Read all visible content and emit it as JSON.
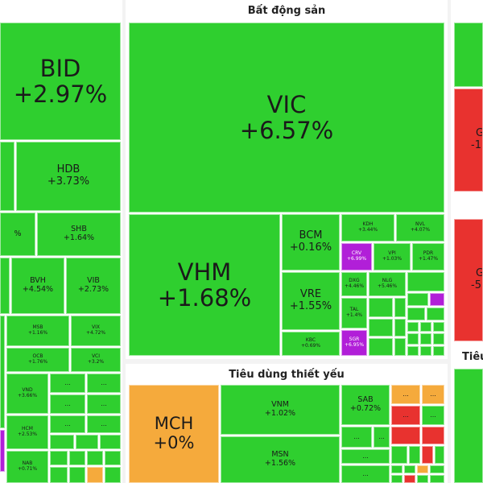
{
  "colors": {
    "up": "#2fcf2f",
    "down": "#e8322f",
    "ceiling": "#b11fd8",
    "reference": "#f5aa3c"
  },
  "sectors": {
    "real_estate": "Bất động sản",
    "consumer_staples": "Tiêu dùng thiết yếu",
    "right_partial": "Tiêu"
  },
  "tiles": {
    "bid": {
      "ticker": "BID",
      "change": "+2.97%"
    },
    "hdb": {
      "ticker": "HDB",
      "change": "+3.73%"
    },
    "shb": {
      "ticker": "SHB",
      "change": "+1.64%"
    },
    "left_partial": {
      "change": "%"
    },
    "bvh": {
      "ticker": "BVH",
      "change": "+4.54%"
    },
    "vib": {
      "ticker": "VIB",
      "change": "+2.73%"
    },
    "msb": {
      "ticker": "MSB",
      "change": "+1.16%"
    },
    "vix": {
      "ticker": "VIX",
      "change": "+4.72%"
    },
    "ocb": {
      "ticker": "OCB",
      "change": "+1.76%"
    },
    "vci": {
      "ticker": "VCI",
      "change": "+3.2%"
    },
    "vnd": {
      "ticker": "VND",
      "change": "+3.66%"
    },
    "hcm": {
      "ticker": "HCM",
      "change": "+2.53%"
    },
    "nab": {
      "ticker": "NAB",
      "change": "+0.71%"
    },
    "vic": {
      "ticker": "VIC",
      "change": "+6.57%"
    },
    "vhm": {
      "ticker": "VHM",
      "change": "+1.68%"
    },
    "bcm": {
      "ticker": "BCM",
      "change": "+0.16%"
    },
    "kdh": {
      "ticker": "KDH",
      "change": "+3.44%"
    },
    "nvl": {
      "ticker": "NVL",
      "change": "+4.07%"
    },
    "crv": {
      "ticker": "CRV",
      "change": "+6.99%"
    },
    "vpi": {
      "ticker": "VPI",
      "change": "+1.03%"
    },
    "pdr": {
      "ticker": "PDR",
      "change": "+1.47%"
    },
    "vre": {
      "ticker": "VRE",
      "change": "+1.55%"
    },
    "dxg": {
      "ticker": "DXG",
      "change": "+4.46%"
    },
    "nlg": {
      "ticker": "NLG",
      "change": "+5.46%"
    },
    "tal": {
      "ticker": "TAL",
      "change": "+1.4%"
    },
    "kbc": {
      "ticker": "KBC",
      "change": "+0.69%"
    },
    "sgr": {
      "ticker": "SGR",
      "change": "+6.95%"
    },
    "mch": {
      "ticker": "MCH",
      "change": "+0%"
    },
    "vnm": {
      "ticker": "VNM",
      "change": "+1.02%"
    },
    "sab": {
      "ticker": "SAB",
      "change": "+0.72%"
    },
    "msn": {
      "ticker": "MSN",
      "change": "+1.56%"
    },
    "right_mid": {
      "ticker": "G",
      "change": "-1"
    },
    "right_low": {
      "ticker": "G",
      "change": "-5"
    },
    "ellipsis": "..."
  }
}
